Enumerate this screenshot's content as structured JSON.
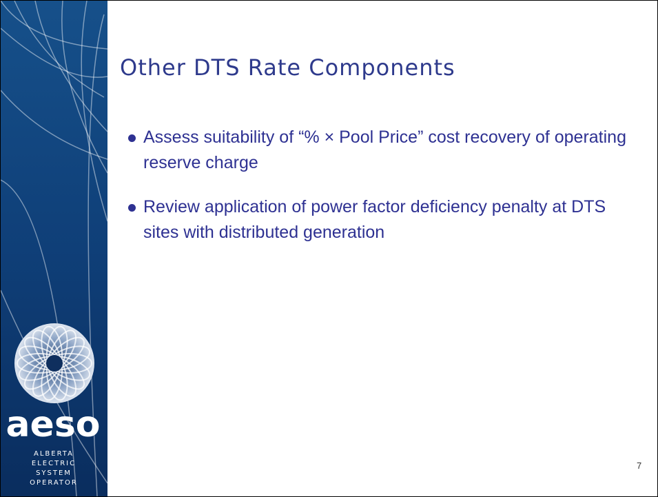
{
  "sidebar": {
    "logo_text": "aeso",
    "logo_subtitle": [
      "ALBERTA",
      "ELECTRIC",
      "SYSTEM",
      "OPERATOR"
    ]
  },
  "title": "Other DTS Rate Components",
  "bullets": [
    "Assess suitability of “% × Pool Price” cost recovery of operating reserve charge",
    "Review application of power factor deficiency penalty at DTS sites with distributed generation"
  ],
  "page_number": 7
}
